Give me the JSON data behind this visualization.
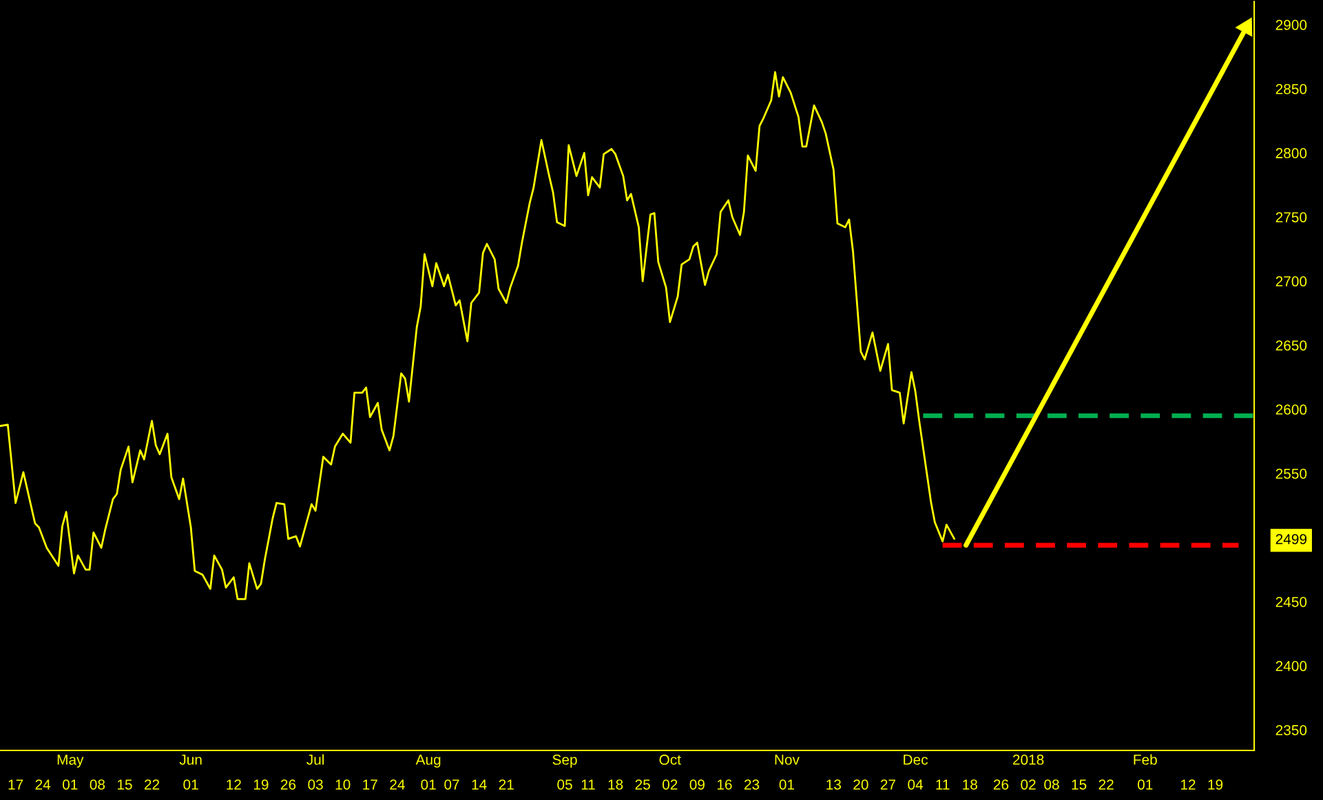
{
  "chart_data": {
    "type": "line",
    "xlim": [
      "2017-04-13",
      "2018-03-01"
    ],
    "ylim": [
      2334,
      2918
    ],
    "xticks": [
      {
        "value": "2017-04-17",
        "label": "17"
      },
      {
        "value": "2017-04-24",
        "label": "24"
      },
      {
        "value": "2017-05-01",
        "label": "01"
      },
      {
        "value": "2017-05-08",
        "label": "08"
      },
      {
        "value": "2017-05-15",
        "label": "15"
      },
      {
        "value": "2017-05-22",
        "label": "22"
      },
      {
        "value": "2017-06-01",
        "label": "01"
      },
      {
        "value": "2017-06-12",
        "label": "12"
      },
      {
        "value": "2017-06-19",
        "label": "19"
      },
      {
        "value": "2017-06-26",
        "label": "26"
      },
      {
        "value": "2017-07-03",
        "label": "03"
      },
      {
        "value": "2017-07-10",
        "label": "10"
      },
      {
        "value": "2017-07-17",
        "label": "17"
      },
      {
        "value": "2017-07-24",
        "label": "24"
      },
      {
        "value": "2017-08-01",
        "label": "01"
      },
      {
        "value": "2017-08-07",
        "label": "07"
      },
      {
        "value": "2017-08-14",
        "label": "14"
      },
      {
        "value": "2017-08-21",
        "label": "21"
      },
      {
        "value": "2017-09-05",
        "label": "05"
      },
      {
        "value": "2017-09-11",
        "label": "11"
      },
      {
        "value": "2017-09-18",
        "label": "18"
      },
      {
        "value": "2017-09-25",
        "label": "25"
      },
      {
        "value": "2017-10-02",
        "label": "02"
      },
      {
        "value": "2017-10-09",
        "label": "09"
      },
      {
        "value": "2017-10-16",
        "label": "16"
      },
      {
        "value": "2017-10-23",
        "label": "23"
      },
      {
        "value": "2017-11-01",
        "label": "01"
      },
      {
        "value": "2017-11-13",
        "label": "13"
      },
      {
        "value": "2017-11-20",
        "label": "20"
      },
      {
        "value": "2017-11-27",
        "label": "27"
      },
      {
        "value": "2017-12-04",
        "label": "04"
      },
      {
        "value": "2017-12-11",
        "label": "11"
      },
      {
        "value": "2017-12-18",
        "label": "18"
      },
      {
        "value": "2017-12-26",
        "label": "26"
      },
      {
        "value": "2018-01-02",
        "label": "02"
      },
      {
        "value": "2018-01-08",
        "label": "08"
      },
      {
        "value": "2018-01-15",
        "label": "15"
      },
      {
        "value": "2018-01-22",
        "label": "22"
      },
      {
        "value": "2018-02-01",
        "label": "01"
      },
      {
        "value": "2018-02-12",
        "label": "12"
      },
      {
        "value": "2018-02-19",
        "label": "19"
      }
    ],
    "x2ticks": [
      {
        "value": "2017-05-01",
        "label": "May"
      },
      {
        "value": "2017-06-01",
        "label": "Jun"
      },
      {
        "value": "2017-07-03",
        "label": "Jul"
      },
      {
        "value": "2017-08-01",
        "label": "Aug"
      },
      {
        "value": "2017-09-05",
        "label": "Sep"
      },
      {
        "value": "2017-10-02",
        "label": "Oct"
      },
      {
        "value": "2017-11-01",
        "label": "Nov"
      },
      {
        "value": "2017-12-04",
        "label": "Dec"
      },
      {
        "value": "2018-01-02",
        "label": "2018"
      },
      {
        "value": "2018-02-01",
        "label": "Feb"
      }
    ],
    "x2lim": [
      "2017-04-13",
      "2018-03-01"
    ],
    "yticks": [
      2350,
      2400,
      2450,
      2499,
      2550,
      2600,
      2650,
      2700,
      2750,
      2800,
      2850,
      2900
    ],
    "grid": false,
    "legend": false,
    "series": [
      {
        "color": "#ffff00",
        "line_style": "solid",
        "x": [
          "2017-04-13",
          "2017-04-15",
          "2017-04-17",
          "2017-04-19",
          "2017-04-22",
          "2017-04-23",
          "2017-04-25",
          "2017-04-28",
          "2017-04-29",
          "2017-04-30",
          "2017-05-02",
          "2017-05-03",
          "2017-05-05",
          "2017-05-06",
          "2017-05-07",
          "2017-05-09",
          "2017-05-10",
          "2017-05-12",
          "2017-05-13",
          "2017-05-14",
          "2017-05-16",
          "2017-05-17",
          "2017-05-19",
          "2017-05-20",
          "2017-05-22",
          "2017-05-23",
          "2017-05-24",
          "2017-05-26",
          "2017-05-27",
          "2017-05-29",
          "2017-05-30",
          "2017-06-01",
          "2017-06-02",
          "2017-06-04",
          "2017-06-06",
          "2017-06-07",
          "2017-06-09",
          "2017-06-10",
          "2017-06-12",
          "2017-06-13",
          "2017-06-15",
          "2017-06-16",
          "2017-06-18",
          "2017-06-19",
          "2017-06-20",
          "2017-06-22",
          "2017-06-23",
          "2017-06-25",
          "2017-06-26",
          "2017-06-28",
          "2017-06-29",
          "2017-06-30",
          "2017-07-02",
          "2017-07-03",
          "2017-07-05",
          "2017-07-07",
          "2017-07-08",
          "2017-07-10",
          "2017-07-12",
          "2017-07-13",
          "2017-07-15",
          "2017-07-16",
          "2017-07-17",
          "2017-07-19",
          "2017-07-20",
          "2017-07-22",
          "2017-07-23",
          "2017-07-25",
          "2017-07-26",
          "2017-07-27",
          "2017-07-29",
          "2017-07-30",
          "2017-07-31",
          "2017-08-02",
          "2017-08-03",
          "2017-08-05",
          "2017-08-06",
          "2017-08-08",
          "2017-08-09",
          "2017-08-11",
          "2017-08-12",
          "2017-08-14",
          "2017-08-15",
          "2017-08-16",
          "2017-08-18",
          "2017-08-19",
          "2017-08-21",
          "2017-08-22",
          "2017-08-24",
          "2017-08-25",
          "2017-08-27",
          "2017-08-28",
          "2017-08-30",
          "2017-09-01",
          "2017-09-02",
          "2017-09-03",
          "2017-09-05",
          "2017-09-06",
          "2017-09-08",
          "2017-09-10",
          "2017-09-11",
          "2017-09-12",
          "2017-09-14",
          "2017-09-15",
          "2017-09-17",
          "2017-09-18",
          "2017-09-20",
          "2017-09-21",
          "2017-09-22",
          "2017-09-24",
          "2017-09-25",
          "2017-09-27",
          "2017-09-28",
          "2017-09-29",
          "2017-10-01",
          "2017-10-02",
          "2017-10-04",
          "2017-10-05",
          "2017-10-07",
          "2017-10-08",
          "2017-10-09",
          "2017-10-11",
          "2017-10-12",
          "2017-10-14",
          "2017-10-15",
          "2017-10-17",
          "2017-10-18",
          "2017-10-20",
          "2017-10-21",
          "2017-10-22",
          "2017-10-24",
          "2017-10-25",
          "2017-10-26",
          "2017-10-28",
          "2017-10-29",
          "2017-10-30",
          "2017-10-31",
          "2017-11-02",
          "2017-11-04",
          "2017-11-05",
          "2017-11-06",
          "2017-11-08",
          "2017-11-10",
          "2017-11-11",
          "2017-11-13",
          "2017-11-14",
          "2017-11-16",
          "2017-11-17",
          "2017-11-18",
          "2017-11-20",
          "2017-11-21",
          "2017-11-23",
          "2017-11-25",
          "2017-11-27",
          "2017-11-28",
          "2017-11-30",
          "2017-12-01",
          "2017-12-03",
          "2017-12-04",
          "2017-12-05",
          "2017-12-07",
          "2017-12-08",
          "2017-12-09",
          "2017-12-11",
          "2017-12-12",
          "2017-12-14"
        ],
        "values": [
          2587,
          2588,
          2527,
          2551,
          2511,
          2508,
          2492,
          2478,
          2509,
          2520,
          2472,
          2486,
          2475,
          2475,
          2504,
          2492,
          2506,
          2530,
          2534,
          2553,
          2571,
          2543,
          2568,
          2561,
          2591,
          2572,
          2565,
          2581,
          2547,
          2530,
          2546,
          2508,
          2474,
          2471,
          2460,
          2486,
          2475,
          2461,
          2469,
          2452,
          2452,
          2480,
          2460,
          2464,
          2483,
          2515,
          2527,
          2526,
          2499,
          2501,
          2493,
          2504,
          2526,
          2521,
          2563,
          2557,
          2571,
          2581,
          2574,
          2613,
          2613,
          2617,
          2594,
          2605,
          2584,
          2568,
          2579,
          2628,
          2624,
          2606,
          2664,
          2680,
          2721,
          2696,
          2714,
          2696,
          2705,
          2681,
          2685,
          2653,
          2683,
          2691,
          2722,
          2729,
          2717,
          2694,
          2683,
          2695,
          2712,
          2730,
          2761,
          2773,
          2810,
          2782,
          2769,
          2746,
          2743,
          2806,
          2782,
          2800,
          2767,
          2781,
          2773,
          2799,
          2803,
          2799,
          2782,
          2763,
          2768,
          2742,
          2700,
          2752,
          2753,
          2715,
          2695,
          2668,
          2688,
          2713,
          2717,
          2727,
          2730,
          2697,
          2708,
          2721,
          2754,
          2763,
          2750,
          2736,
          2754,
          2798,
          2786,
          2821,
          2827,
          2841,
          2863,
          2844,
          2859,
          2847,
          2828,
          2805,
          2805,
          2837,
          2824,
          2815,
          2787,
          2745,
          2742,
          2748,
          2723,
          2645,
          2639,
          2660,
          2630,
          2651,
          2615,
          2613,
          2589,
          2629,
          2614,
          2591,
          2549,
          2528,
          2512,
          2497,
          2510,
          2499
        ]
      },
      {
        "color": "#00b050",
        "line_style": "dashed",
        "x": [
          "2017-12-06",
          "2018-03-01"
        ],
        "values": [
          2595,
          2595
        ]
      },
      {
        "color": "#ff0000",
        "line_style": "dashed",
        "x": [
          "2017-12-11",
          "2018-02-25"
        ],
        "values": [
          2494,
          2494
        ]
      },
      {
        "color": "#ffff00",
        "line_style": "solid",
        "marker": "triangle",
        "x": [
          "2017-12-17",
          "2018-02-27"
        ],
        "values": [
          2494,
          2898
        ]
      }
    ]
  }
}
